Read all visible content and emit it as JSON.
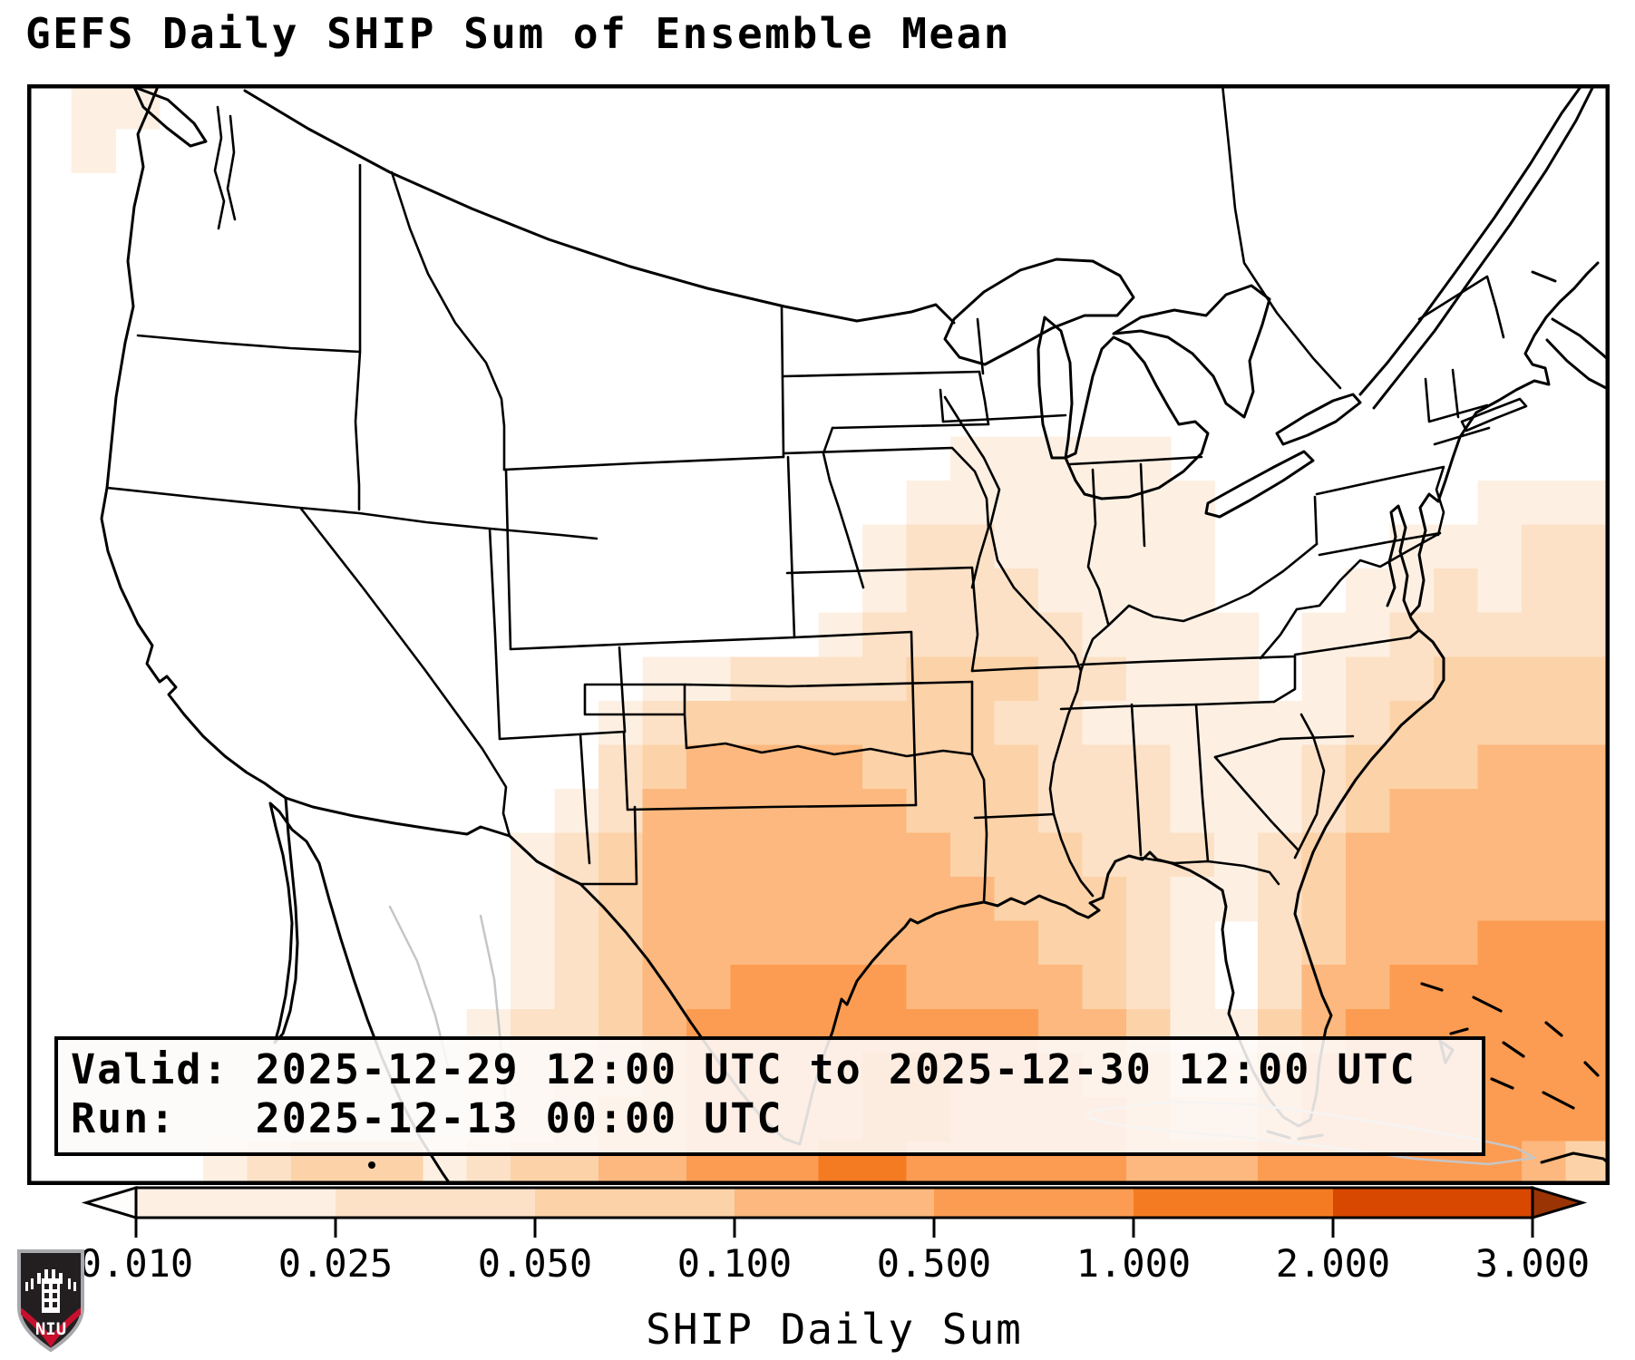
{
  "title": "GEFS Daily SHIP Sum of Ensemble Mean",
  "info_box": {
    "line1": "Valid: 2025-12-29 12:00 UTC to 2025-12-30 12:00 UTC",
    "line2": "Run:   2025-12-13 00:00 UTC"
  },
  "colorbar": {
    "title": "SHIP Daily Sum",
    "tick_labels": [
      "0.010",
      "0.025",
      "0.050",
      "0.100",
      "0.500",
      "1.000",
      "2.000",
      "3.000"
    ],
    "segment_colors": [
      "#fdf0e3",
      "#fce1c6",
      "#fcd2a8",
      "#fcb87e",
      "#fc9c52",
      "#f57b22",
      "#d94801"
    ],
    "under_arrow_color": "#fffdfb",
    "over_arrow_color": "#9a3404",
    "outline_color": "#000000"
  },
  "logo": {
    "text": "NIU",
    "shield_top_color": "#231f20",
    "banner_color": "#c8102e",
    "border_color": "#a7a9ac"
  },
  "map": {
    "background": "#ffffff",
    "us_outline_color": "#000000",
    "foreign_outline_color": "#c6c6c6",
    "heat_palette": {
      "1": "#fdf0e3",
      "2": "#fce1c6",
      "3": "#fcd2a8",
      "4": "#fcb87e",
      "5": "#fc9c52",
      "6": "#f57b22",
      "7": "#d94801"
    },
    "heat_grid_cols": 36,
    "heat_grid_rows": 25,
    "heat_grid": [
      "011000000000000000000000000000000000",
      "010000000000000000000000000000000000",
      "000000000000000000000000000000000000",
      "000000000000000000000000000000000000",
      "000000000000000000000000000000000000",
      "000000000000000000000000000000000000",
      "000000000000000000000000000000000000",
      "000000000000000000000000000000000000",
      "000000000000000000000111110000000000",
      "000000000000000000001111111000000111",
      "000000000000000000012211111000011122",
      "000000000000000000012221111000112122",
      "000000000000000000122222111101122222",
      "000000000000001122223332211101223333",
      "000000000000012333333322111111233333",
      "000000000000023444433332221112333444",
      "000000000000124444443332221112344444",
      "000000000001234444444333222123444444",
      "000000000001234444444433321123444444",
      "000000000001234444444443321023444555",
      "000000000001234455554444321024455555",
      "000000000012234555555554431134555555",
      "000000000012334555566555442245555555",
      "000000000012344555566555543345555555",
      "000012333123344555665555544455555543"
    ]
  },
  "chart_data": {
    "type": "heatmap",
    "title": "GEFS Daily SHIP Sum of Ensemble Mean",
    "units": "SHIP Daily Sum",
    "scale_ticks": [
      0.01,
      0.025,
      0.05,
      0.1,
      0.5,
      1.0,
      2.0,
      3.0
    ],
    "scale_type": "discrete, Oranges colormap with under/over arrows",
    "valid": "2025-12-29 12:00 UTC to 2025-12-30 12:00 UTC",
    "run": "2025-12-13 00:00 UTC",
    "maxima": [
      {
        "region": "western Gulf of Mexico off south Texas coast",
        "value_range": "1.0-2.0"
      },
      {
        "region": "east-central Texas",
        "value_range": "0.1-0.5"
      },
      {
        "region": "northern Gulf of Mexico and Gulf Stream / Bahamas Atlantic",
        "value_range": "0.5-1.0"
      },
      {
        "region": "Arkansas / lower Mississippi valley",
        "value_range": "0.05-0.1"
      },
      {
        "region": "Ohio valley, Southeast US, coastal Washington",
        "value_range": "0.01-0.05"
      }
    ]
  }
}
